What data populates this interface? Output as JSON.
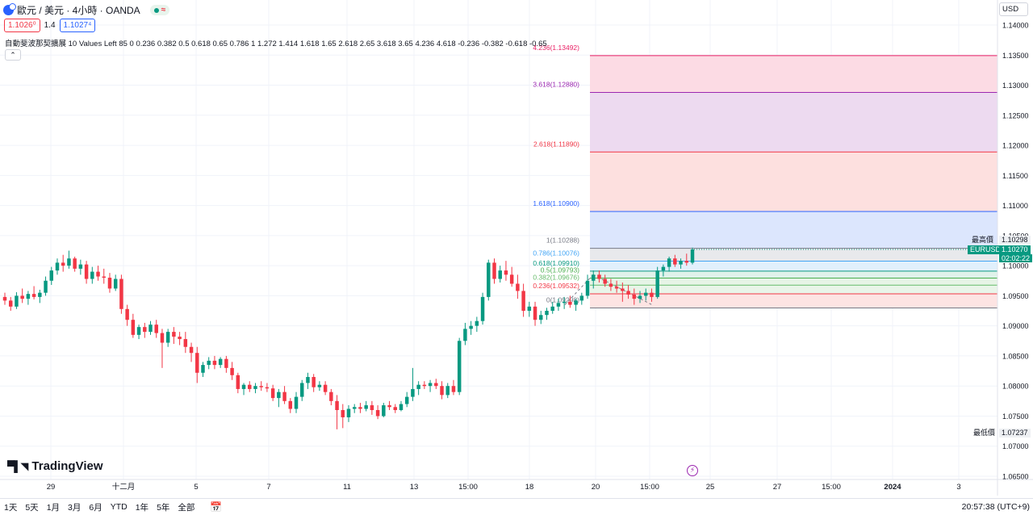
{
  "header": {
    "symbol_title": "歐元 / 美元 · 4小時 · OANDA",
    "sell_price": "1.1026⁰",
    "spread": "1.4",
    "buy_price": "1.1027⁴",
    "status_wave": "≈"
  },
  "indicator": {
    "text": "自動斐波那契擴展 10 Values Left 85 0 0.236 0.382 0.5 0.618 0.65 0.786 1 1.272 1.414 1.618 1.65 2.618 2.65 3.618 3.65 4.236 4.618 -0.236 -0.382 -0.618 -0.65",
    "collapse_glyph": "⌃"
  },
  "currency_selector": "USD",
  "brand": "TradingView",
  "price_axis": {
    "ticks": [
      "1.14000",
      "1.13500",
      "1.13000",
      "1.12500",
      "1.12000",
      "1.11500",
      "1.11000",
      "1.10500",
      "1.10000",
      "1.09500",
      "1.09000",
      "1.08500",
      "1.08000",
      "1.07500",
      "1.07000",
      "1.06500"
    ],
    "tick_values": [
      1.14,
      1.135,
      1.13,
      1.125,
      1.12,
      1.115,
      1.11,
      1.105,
      1.1,
      1.095,
      1.09,
      1.085,
      1.08,
      1.075,
      1.07,
      1.065
    ],
    "high_label": "最高價",
    "high_value": "1.10298",
    "symbol_label": "EURUSD",
    "last_value": "1.10270",
    "countdown": "02:02:22",
    "low_label": "最低價",
    "low_value": "1.07237"
  },
  "time_axis": {
    "labels": [
      "29",
      "十二月",
      "5",
      "7",
      "11",
      "13",
      "15:00",
      "18",
      "20",
      "15:00",
      "25",
      "27",
      "15:00",
      "2024",
      "3"
    ],
    "bold_label": "2024"
  },
  "fib_levels": [
    {
      "label": "4.236(1.13492)",
      "price": 1.13492,
      "color": "#e91e63",
      "fill": "#fcdbe4"
    },
    {
      "label": "3.618(1.12880)",
      "price": 1.1288,
      "color": "#9c27b0",
      "fill": "#eddaf0"
    },
    {
      "label": "2.618(1.11890)",
      "price": 1.1189,
      "color": "#f23645",
      "fill": "#fde0df"
    },
    {
      "label": "1.618(1.10900)",
      "price": 1.109,
      "color": "#2962ff",
      "fill": "#dce6fd"
    },
    {
      "label": "1(1.10288)",
      "price": 1.10288,
      "color": "#787b86",
      "fill": "#e8e9ec"
    },
    {
      "label": "0.786(1.10076)",
      "price": 1.10076,
      "color": "#42a5f5",
      "fill": "#e1f0fc"
    },
    {
      "label": "0.618(1.09910)",
      "price": 1.0991,
      "color": "#089981",
      "fill": "#dff2ea"
    },
    {
      "label": "0.5(1.09793)",
      "price": 1.09793,
      "color": "#4caf50",
      "fill": "#e6f4e6"
    },
    {
      "label": "0.382(1.09676)",
      "price": 1.09676,
      "color": "#66bb6a",
      "fill": "#e9f5e9"
    },
    {
      "label": "0.236(1.09532)",
      "price": 1.09532,
      "color": "#f23645",
      "fill": "#fde4e3"
    },
    {
      "label": "0(1.09298)",
      "price": 1.09298,
      "color": "#787b86",
      "fill": null
    }
  ],
  "colors": {
    "up": "#089981",
    "down": "#f23645",
    "grid": "#f0f3fa",
    "axis_text": "#131722",
    "symbol_flag": "#089981"
  },
  "candles": [
    [
      1.0948,
      1.0955,
      1.0935,
      1.0942
    ],
    [
      1.0942,
      1.0948,
      1.0925,
      1.0932
    ],
    [
      1.0932,
      1.0956,
      1.0928,
      1.095
    ],
    [
      1.095,
      1.0962,
      1.0938,
      1.0945
    ],
    [
      1.0945,
      1.0958,
      1.0935,
      1.0953
    ],
    [
      1.0953,
      1.0966,
      1.0944,
      1.0948
    ],
    [
      1.0948,
      1.096,
      1.0938,
      1.0955
    ],
    [
      1.0955,
      1.0982,
      1.095,
      1.0975
    ],
    [
      1.0975,
      1.0998,
      1.0968,
      1.0992
    ],
    [
      1.0992,
      1.1012,
      1.0985,
      1.1005
    ],
    [
      1.1005,
      1.1018,
      1.099,
      1.1
    ],
    [
      1.1,
      1.1025,
      1.0995,
      1.1012
    ],
    [
      1.1012,
      1.1015,
      1.099,
      1.0995
    ],
    [
      1.0995,
      1.101,
      1.0985,
      1.1002
    ],
    [
      1.1002,
      1.1008,
      1.097,
      1.0978
    ],
    [
      1.0978,
      1.0998,
      1.097,
      1.099
    ],
    [
      1.099,
      1.1,
      1.0975,
      1.0982
    ],
    [
      1.0982,
      1.0995,
      1.097,
      1.098
    ],
    [
      1.098,
      1.0988,
      1.0955,
      1.0962
    ],
    [
      1.0962,
      1.0985,
      1.0958,
      1.0978
    ],
    [
      1.0978,
      1.0985,
      1.092,
      1.0928
    ],
    [
      1.0928,
      1.0935,
      1.09,
      1.091
    ],
    [
      1.091,
      1.092,
      1.088,
      1.0885
    ],
    [
      1.0885,
      1.0902,
      1.0878,
      1.0898
    ],
    [
      1.0898,
      1.0905,
      1.088,
      1.089
    ],
    [
      1.089,
      1.0908,
      1.0885,
      1.0902
    ],
    [
      1.0902,
      1.091,
      1.088,
      1.0888
    ],
    [
      1.0888,
      1.0895,
      1.083,
      1.0872
    ],
    [
      1.0872,
      1.0895,
      1.0865,
      1.089
    ],
    [
      1.089,
      1.0898,
      1.087,
      1.0882
    ],
    [
      1.0882,
      1.089,
      1.0868,
      1.0878
    ],
    [
      1.0878,
      1.089,
      1.0855,
      1.0865
    ],
    [
      1.0865,
      1.0872,
      1.084,
      1.0855
    ],
    [
      1.0855,
      1.0865,
      1.0805,
      1.0822
    ],
    [
      1.0822,
      1.084,
      1.0815,
      1.0835
    ],
    [
      1.0835,
      1.0848,
      1.0828,
      1.0842
    ],
    [
      1.0842,
      1.085,
      1.0828,
      1.0835
    ],
    [
      1.0835,
      1.0848,
      1.083,
      1.0845
    ],
    [
      1.0845,
      1.085,
      1.0822,
      1.083
    ],
    [
      1.083,
      1.084,
      1.081,
      1.0818
    ],
    [
      1.0818,
      1.0822,
      1.0788,
      1.0795
    ],
    [
      1.0795,
      1.0805,
      1.0785,
      1.0802
    ],
    [
      1.0802,
      1.0808,
      1.079,
      1.0795
    ],
    [
      1.0795,
      1.0805,
      1.0788,
      1.08
    ],
    [
      1.08,
      1.0808,
      1.0792,
      1.0798
    ],
    [
      1.0798,
      1.0805,
      1.079,
      1.0796
    ],
    [
      1.0796,
      1.0802,
      1.0775,
      1.078
    ],
    [
      1.078,
      1.0795,
      1.0765,
      1.079
    ],
    [
      1.079,
      1.08,
      1.077,
      1.0775
    ],
    [
      1.0775,
      1.078,
      1.0755,
      1.0762
    ],
    [
      1.0762,
      1.079,
      1.0755,
      1.0782
    ],
    [
      1.0782,
      1.081,
      1.0775,
      1.0805
    ],
    [
      1.0805,
      1.0822,
      1.0795,
      1.0815
    ],
    [
      1.0815,
      1.082,
      1.079,
      1.0798
    ],
    [
      1.0798,
      1.0808,
      1.0792,
      1.0802
    ],
    [
      1.0802,
      1.0808,
      1.0785,
      1.079
    ],
    [
      1.079,
      1.0795,
      1.0768,
      1.0775
    ],
    [
      1.0775,
      1.0785,
      1.0728,
      1.076
    ],
    [
      1.076,
      1.077,
      1.073,
      1.0748
    ],
    [
      1.0748,
      1.0768,
      1.074,
      1.0762
    ],
    [
      1.0762,
      1.077,
      1.0755,
      1.0765
    ],
    [
      1.0765,
      1.0772,
      1.0755,
      1.0762
    ],
    [
      1.0762,
      1.0775,
      1.0758,
      1.0768
    ],
    [
      1.0768,
      1.0775,
      1.0752,
      1.076
    ],
    [
      1.076,
      1.0768,
      1.0745,
      1.075
    ],
    [
      1.075,
      1.0772,
      1.0748,
      1.0768
    ],
    [
      1.0768,
      1.0775,
      1.076,
      1.0765
    ],
    [
      1.0765,
      1.077,
      1.0755,
      1.076
    ],
    [
      1.076,
      1.0775,
      1.0758,
      1.077
    ],
    [
      1.077,
      1.079,
      1.0765,
      1.0782
    ],
    [
      1.0782,
      1.083,
      1.0775,
      1.0795
    ],
    [
      1.0795,
      1.0808,
      1.0785,
      1.0802
    ],
    [
      1.0802,
      1.0808,
      1.0795,
      1.08
    ],
    [
      1.08,
      1.081,
      1.079,
      1.0805
    ],
    [
      1.0805,
      1.0812,
      1.0795,
      1.08
    ],
    [
      1.08,
      1.0808,
      1.0778,
      1.0785
    ],
    [
      1.0785,
      1.0805,
      1.078,
      1.08
    ],
    [
      1.08,
      1.081,
      1.0785,
      1.079
    ],
    [
      1.079,
      1.088,
      1.0785,
      1.0875
    ],
    [
      1.0875,
      1.0905,
      1.0868,
      1.0895
    ],
    [
      1.0895,
      1.0908,
      1.0885,
      1.09
    ],
    [
      1.09,
      1.0915,
      1.089,
      1.0908
    ],
    [
      1.0908,
      1.0955,
      1.0902,
      1.0948
    ],
    [
      1.0948,
      1.101,
      1.0942,
      1.1005
    ],
    [
      1.1005,
      1.1012,
      1.097,
      1.0978
    ],
    [
      1.0978,
      1.1,
      1.0972,
      1.0992
    ],
    [
      1.0992,
      1.1008,
      1.0975,
      1.0985
    ],
    [
      1.0985,
      1.0998,
      1.0965,
      1.097
    ],
    [
      1.097,
      1.0985,
      1.0945,
      1.0958
    ],
    [
      1.0958,
      1.097,
      1.0915,
      1.0925
    ],
    [
      1.0925,
      1.094,
      1.0915,
      1.0932
    ],
    [
      1.0932,
      1.094,
      1.09,
      1.091
    ],
    [
      1.091,
      1.0925,
      1.0903,
      1.0918
    ],
    [
      1.0918,
      1.093,
      1.091,
      1.0925
    ],
    [
      1.0925,
      1.094,
      1.092,
      1.0932
    ],
    [
      1.0932,
      1.0945,
      1.0925,
      1.0938
    ],
    [
      1.0938,
      1.0948,
      1.0928,
      1.094
    ],
    [
      1.094,
      1.095,
      1.093,
      1.0935
    ],
    [
      1.0935,
      1.0945,
      1.0925,
      1.0942
    ],
    [
      1.0942,
      1.0955,
      1.0935,
      1.095
    ],
    [
      1.095,
      1.0985,
      1.0945,
      1.0975
    ],
    [
      1.0975,
      1.0992,
      1.0962,
      1.0985
    ],
    [
      1.0985,
      1.0992,
      1.0972,
      1.0978
    ],
    [
      1.0978,
      1.0985,
      1.0965,
      1.097
    ],
    [
      1.097,
      1.0978,
      1.0958,
      1.0965
    ],
    [
      1.0965,
      1.0975,
      1.0955,
      1.0962
    ],
    [
      1.0962,
      1.0972,
      1.094,
      1.0958
    ],
    [
      1.0958,
      1.0968,
      1.0945,
      1.0952
    ],
    [
      1.0952,
      1.0962,
      1.0935,
      1.0945
    ],
    [
      1.0945,
      1.0958,
      1.0938,
      1.095
    ],
    [
      1.095,
      1.0962,
      1.0942,
      1.0955
    ],
    [
      1.0955,
      1.0962,
      1.094,
      1.0948
    ],
    [
      1.0948,
      1.0998,
      1.0945,
      1.0992
    ],
    [
      1.0992,
      1.1002,
      1.0982,
      1.0998
    ],
    [
      1.0998,
      1.1015,
      1.099,
      1.1012
    ],
    [
      1.1012,
      1.1018,
      1.0998,
      1.1002
    ],
    [
      1.1002,
      1.1012,
      1.0995,
      1.1008
    ],
    [
      1.1008,
      1.102,
      1.1,
      1.1005
    ],
    [
      1.1005,
      1.103,
      1.1002,
      1.1027
    ]
  ]
}
